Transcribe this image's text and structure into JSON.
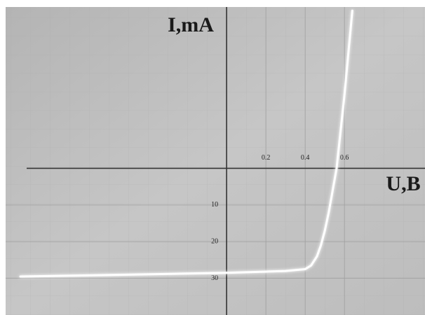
{
  "chart_data": {
    "type": "line",
    "x_label": "U,B",
    "y_label": "I,mA",
    "x": [
      -1.05,
      -0.5,
      0,
      0.3,
      0.4,
      0.43,
      0.46,
      0.48,
      0.5,
      0.52,
      0.56,
      0.6,
      0.64
    ],
    "values": [
      29.5,
      29,
      28.5,
      28,
      27.5,
      26.5,
      24,
      21,
      17,
      12,
      0,
      -20,
      -43
    ],
    "color": "#ffffff",
    "xlim": [
      -1.125,
      1.01
    ],
    "ylim": [
      40,
      -44
    ],
    "xticks": [
      0.2,
      0.4,
      0.6
    ],
    "yticks": [
      10,
      20,
      30
    ],
    "grid": true
  }
}
